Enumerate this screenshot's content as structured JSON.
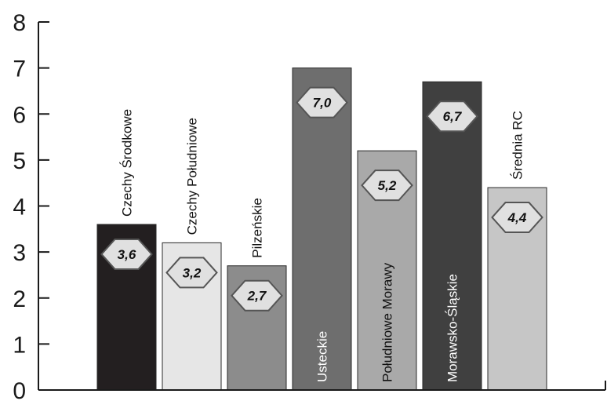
{
  "chart_data": {
    "type": "bar",
    "title": "",
    "xlabel": "",
    "ylabel": "",
    "ylim": [
      0,
      8
    ],
    "yticks": [
      "0",
      "1",
      "2",
      "3",
      "4",
      "5",
      "6",
      "7",
      "8"
    ],
    "grid": false,
    "legend": "none",
    "categories": [
      "Czechy Środkowe",
      "Czechy Południowe",
      "Pilzeńskie",
      "Usteckie",
      "Południowe Morawy",
      "Morawsko-Śląskie",
      "Średnia RC"
    ],
    "values": [
      3.6,
      3.2,
      2.7,
      7.0,
      5.2,
      6.7,
      4.4
    ],
    "value_labels": [
      "3,6",
      "3,2",
      "2,7",
      "7,0",
      "5,2",
      "6,7",
      "4,4"
    ],
    "bar_colors": [
      "#231f20",
      "#e6e6e6",
      "#8c8c8c",
      "#6e6e6e",
      "#a9a9a9",
      "#404040",
      "#c6c6c6"
    ],
    "label_colors": [
      "#111111",
      "#111111",
      "#111111",
      "#ffffff",
      "#111111",
      "#ffffff",
      "#111111"
    ],
    "badge_fill": "#e0e0e0",
    "badge_stroke": "#555555"
  }
}
